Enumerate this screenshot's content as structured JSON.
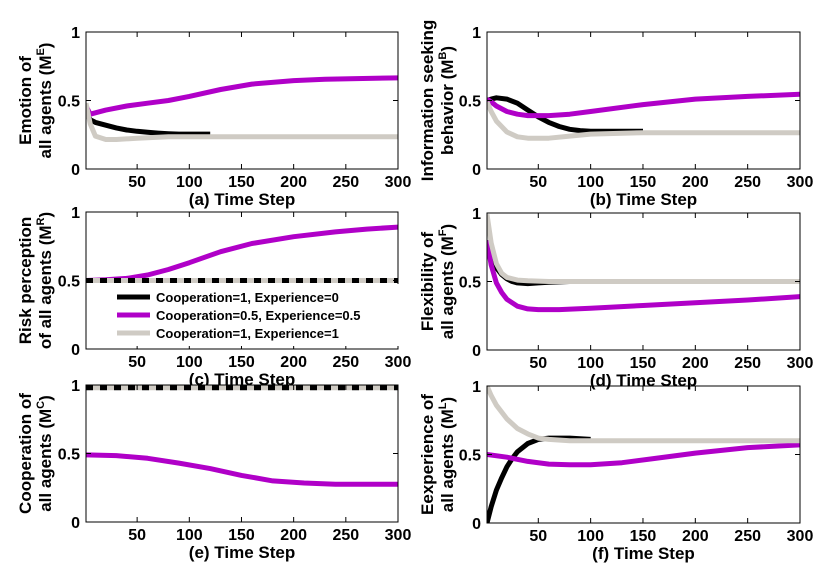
{
  "colors": {
    "black": "#000000",
    "magenta": "#b000c8",
    "gray": "#cfcbc4"
  },
  "legend": [
    "Cooperation=1, Experience=0",
    "Cooperation=0.5, Experience=0.5",
    "Cooperation=1, Experience=1"
  ],
  "chart_data": [
    {
      "type": "line",
      "id": "a",
      "xlabel": "(a) Time Step",
      "ylabel": [
        "Emotion of",
        "all agents (M",
        "E",
        ")"
      ],
      "xlim": [
        1,
        300
      ],
      "ylim": [
        0,
        1
      ],
      "xticks": [
        50,
        100,
        150,
        200,
        250,
        300
      ],
      "yticks": [
        0,
        0.5,
        1
      ],
      "ytick_labels": [
        "0",
        "0.5",
        "1"
      ],
      "series": [
        {
          "color_key": "black",
          "x": [
            1,
            5,
            10,
            20,
            30,
            40,
            50,
            60,
            70,
            80,
            90,
            100,
            120
          ],
          "y": [
            0.42,
            0.36,
            0.34,
            0.32,
            0.3,
            0.285,
            0.275,
            0.268,
            0.262,
            0.258,
            0.255,
            0.255,
            0.255
          ]
        },
        {
          "color_key": "magenta",
          "x": [
            1,
            5,
            10,
            20,
            40,
            60,
            80,
            100,
            130,
            160,
            200,
            230,
            260,
            300
          ],
          "y": [
            0.46,
            0.4,
            0.41,
            0.43,
            0.46,
            0.48,
            0.5,
            0.53,
            0.58,
            0.62,
            0.645,
            0.655,
            0.66,
            0.665
          ]
        },
        {
          "color_key": "gray",
          "x": [
            1,
            5,
            10,
            20,
            30,
            50,
            80,
            120,
            200,
            300
          ],
          "y": [
            0.48,
            0.33,
            0.24,
            0.215,
            0.215,
            0.225,
            0.235,
            0.235,
            0.235,
            0.235
          ]
        }
      ]
    },
    {
      "type": "line",
      "id": "b",
      "xlabel": "(b) Time Step",
      "ylabel": [
        "Information seeking",
        "behavior (M",
        "B",
        ")"
      ],
      "xlim": [
        1,
        300
      ],
      "ylim": [
        0,
        1
      ],
      "xticks": [
        50,
        100,
        150,
        200,
        250,
        300
      ],
      "yticks": [
        0,
        0.5,
        1
      ],
      "ytick_labels": [
        "0",
        "0.5",
        "1"
      ],
      "series": [
        {
          "color_key": "black",
          "x": [
            1,
            5,
            10,
            20,
            30,
            40,
            50,
            60,
            70,
            80,
            90,
            100,
            150
          ],
          "y": [
            0.5,
            0.51,
            0.52,
            0.51,
            0.48,
            0.43,
            0.38,
            0.34,
            0.31,
            0.29,
            0.28,
            0.275,
            0.275
          ]
        },
        {
          "color_key": "magenta",
          "x": [
            1,
            5,
            10,
            20,
            30,
            40,
            50,
            60,
            80,
            100,
            150,
            200,
            250,
            300
          ],
          "y": [
            0.51,
            0.49,
            0.46,
            0.42,
            0.4,
            0.39,
            0.39,
            0.39,
            0.4,
            0.42,
            0.47,
            0.51,
            0.53,
            0.545
          ]
        },
        {
          "color_key": "gray",
          "x": [
            1,
            5,
            10,
            20,
            30,
            40,
            60,
            80,
            100,
            150,
            200,
            300
          ],
          "y": [
            0.49,
            0.42,
            0.35,
            0.27,
            0.235,
            0.225,
            0.225,
            0.24,
            0.255,
            0.265,
            0.265,
            0.265
          ]
        }
      ]
    },
    {
      "type": "line",
      "id": "c",
      "xlabel": "(c) Time Step",
      "ylabel": [
        "Risk perception",
        "of all agents (M",
        "R",
        ")"
      ],
      "xlim": [
        1,
        300
      ],
      "ylim": [
        0,
        1
      ],
      "xticks": [
        50,
        100,
        150,
        200,
        250,
        300
      ],
      "yticks": [
        0,
        0.5,
        1
      ],
      "ytick_labels": [
        "0",
        "0.5",
        "1"
      ],
      "series": [
        {
          "color_key": "magenta",
          "x": [
            1,
            20,
            40,
            60,
            80,
            100,
            130,
            160,
            200,
            240,
            270,
            300
          ],
          "y": [
            0.5,
            0.505,
            0.515,
            0.54,
            0.58,
            0.63,
            0.71,
            0.77,
            0.82,
            0.855,
            0.875,
            0.89
          ]
        },
        {
          "color_key": "black",
          "dash": "7 7",
          "x": [
            1,
            300
          ],
          "y": [
            0.5,
            0.5
          ]
        },
        {
          "color_key": "gray",
          "dash": "7 7",
          "offset": 7,
          "x": [
            1,
            300
          ],
          "y": [
            0.5,
            0.5
          ]
        }
      ]
    },
    {
      "type": "line",
      "id": "d",
      "xlabel": "(d) Time Step",
      "ylabel": [
        "Flexibility of",
        "all agents (M",
        "F",
        ")"
      ],
      "xlim": [
        1,
        300
      ],
      "ylim": [
        0,
        1
      ],
      "xticks": [
        50,
        100,
        150,
        200,
        250,
        300
      ],
      "yticks": [
        0,
        0.5,
        1
      ],
      "ytick_labels": [
        "0",
        "0.5",
        "1"
      ],
      "series": [
        {
          "color_key": "black",
          "x": [
            1,
            5,
            10,
            15,
            20,
            25,
            30,
            40,
            50,
            60,
            80,
            90
          ],
          "y": [
            0.8,
            0.68,
            0.6,
            0.55,
            0.52,
            0.5,
            0.49,
            0.485,
            0.49,
            0.495,
            0.5,
            0.5
          ]
        },
        {
          "color_key": "magenta",
          "x": [
            1,
            5,
            10,
            15,
            20,
            30,
            40,
            50,
            70,
            100,
            150,
            200,
            250,
            300
          ],
          "y": [
            0.8,
            0.62,
            0.49,
            0.42,
            0.37,
            0.32,
            0.3,
            0.295,
            0.295,
            0.305,
            0.325,
            0.345,
            0.365,
            0.39
          ]
        },
        {
          "color_key": "gray",
          "x": [
            1,
            5,
            10,
            15,
            20,
            30,
            40,
            60,
            100,
            300
          ],
          "y": [
            0.99,
            0.78,
            0.63,
            0.56,
            0.53,
            0.51,
            0.505,
            0.5,
            0.5,
            0.5
          ]
        }
      ]
    },
    {
      "type": "line",
      "id": "e",
      "xlabel": "(e) Time Step",
      "ylabel": [
        "Cooperation of",
        "all agents (M",
        "C",
        ")"
      ],
      "xlim": [
        1,
        300
      ],
      "ylim": [
        0,
        1
      ],
      "xticks": [
        50,
        100,
        150,
        200,
        250,
        300
      ],
      "yticks": [
        0,
        0.5,
        1
      ],
      "ytick_labels": [
        "0",
        "0.5",
        "1"
      ],
      "series": [
        {
          "color_key": "magenta",
          "x": [
            1,
            30,
            60,
            90,
            120,
            150,
            180,
            210,
            240,
            270,
            300
          ],
          "y": [
            0.49,
            0.485,
            0.465,
            0.43,
            0.39,
            0.34,
            0.3,
            0.285,
            0.275,
            0.275,
            0.275
          ]
        },
        {
          "color_key": "black",
          "dash": "7 7",
          "x": [
            1,
            300
          ],
          "y": [
            0.98,
            0.98
          ]
        },
        {
          "color_key": "gray",
          "dash": "7 7",
          "offset": 7,
          "x": [
            1,
            300
          ],
          "y": [
            0.98,
            0.98
          ]
        }
      ]
    },
    {
      "type": "line",
      "id": "f",
      "xlabel": "(f) Time Step",
      "ylabel": [
        "Eexperience of",
        "all agents (M",
        "L",
        ")"
      ],
      "xlim": [
        1,
        300
      ],
      "ylim": [
        0,
        1
      ],
      "xticks": [
        50,
        100,
        150,
        200,
        250,
        300
      ],
      "yticks": [
        0,
        0.5,
        1
      ],
      "ytick_labels": [
        "0",
        "0.5",
        "1"
      ],
      "series": [
        {
          "color_key": "black",
          "x": [
            1,
            5,
            10,
            15,
            20,
            25,
            30,
            40,
            50,
            60,
            80,
            100
          ],
          "y": [
            0.0,
            0.12,
            0.24,
            0.33,
            0.41,
            0.47,
            0.52,
            0.58,
            0.61,
            0.62,
            0.62,
            0.61
          ]
        },
        {
          "color_key": "magenta",
          "x": [
            1,
            20,
            40,
            60,
            80,
            100,
            130,
            160,
            200,
            250,
            300
          ],
          "y": [
            0.5,
            0.48,
            0.45,
            0.43,
            0.425,
            0.425,
            0.44,
            0.47,
            0.51,
            0.55,
            0.57
          ]
        },
        {
          "color_key": "gray",
          "x": [
            1,
            5,
            10,
            20,
            30,
            40,
            50,
            60,
            80,
            100,
            200,
            300
          ],
          "y": [
            1.0,
            0.93,
            0.86,
            0.76,
            0.69,
            0.65,
            0.62,
            0.61,
            0.6,
            0.6,
            0.6,
            0.6
          ]
        }
      ]
    }
  ]
}
